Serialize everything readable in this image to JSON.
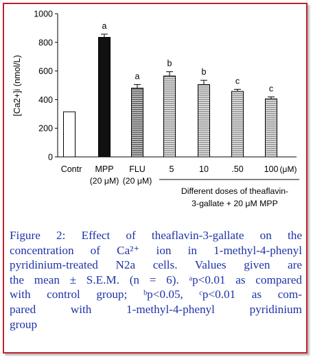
{
  "chart_data": {
    "type": "bar",
    "ylabel": "[Ca2+]i (nmol/L)",
    "ylim": [
      0,
      1000
    ],
    "yticks": [
      0,
      200,
      400,
      600,
      800,
      1000
    ],
    "grid": false,
    "categories": [
      "Contr",
      "MPP",
      "FLU",
      "5",
      "10",
      ".50",
      "100"
    ],
    "category_sublabels": [
      "",
      "(20 μM)",
      "(20 μM)",
      "",
      "",
      "",
      ""
    ],
    "unit_label": "(μM)",
    "values": [
      315,
      835,
      480,
      565,
      505,
      458,
      405
    ],
    "errors": [
      0,
      22,
      25,
      30,
      30,
      14,
      14
    ],
    "significance": [
      "",
      "a",
      "a",
      "b",
      "b",
      "c",
      "c"
    ],
    "bar_styles": [
      "open",
      "dark",
      "medium-hatched",
      "light-hatched",
      "light-hatched",
      "light-hatched",
      "light-hatched"
    ],
    "group_label_line1": "Different doses of theaflavin-",
    "group_label_line2": "3-gallate + 20 μM MPP"
  },
  "caption": {
    "lines": [
      "Figure 2: Effect of theaflavin-3-gallate on the",
      "concentration of Ca²⁺ ion in 1-methyl-4-phenyl",
      "pyridinium-treated N2a cells. Values given are",
      "the mean ± S.E.M. (n = 6). ᵃp<0.01 as compared",
      "with control group; ᵇp<0.05, ᶜp<0.01 as com-",
      "pared with 1-methyl-4-phenyl pyridinium",
      "group"
    ]
  },
  "colors": {
    "border": "#c0202a",
    "caption_text": "#1f33a8"
  }
}
